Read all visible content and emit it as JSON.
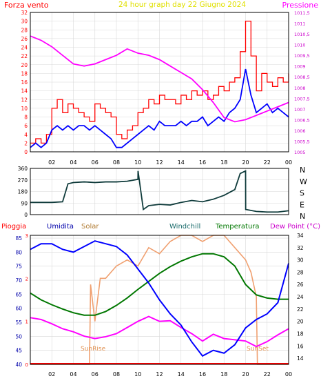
{
  "chart_data": [
    {
      "type": "line",
      "title": "24 hour graph day  22 Giugno 2024",
      "left_axis_label": "Forza vento",
      "right_axis_label": "Pressione",
      "x_tick_labels": [
        "02",
        "04",
        "06",
        "08",
        "10",
        "12",
        "14",
        "16",
        "18",
        "20",
        "22",
        "00"
      ],
      "x_range_hours": [
        0,
        24
      ],
      "left_ylim": [
        0,
        32
      ],
      "left_ticks": [
        "0",
        "2",
        "4",
        "6",
        "8",
        "10",
        "12",
        "14",
        "16",
        "18",
        "20",
        "22",
        "24",
        "26",
        "28",
        "30",
        "32"
      ],
      "right_ylim": [
        1005,
        1011.5
      ],
      "right_ticks": [
        "1005",
        "1005,5",
        "1006",
        "1006,5",
        "1007",
        "1007,5",
        "1008",
        "1008,5",
        "1009",
        "1009,5",
        "1010",
        "1010,5",
        "1011",
        "1011,5"
      ],
      "grid": true,
      "series": [
        {
          "color": "#ff0000",
          "shape": "step",
          "x": [
            0,
            0.5,
            1,
            1.5,
            2,
            2.5,
            3,
            3.5,
            4,
            4.5,
            5,
            5.5,
            6,
            6.5,
            7,
            7.5,
            8,
            8.5,
            9,
            9.5,
            10,
            10.5,
            11,
            11.5,
            12,
            12.5,
            13,
            13.5,
            14,
            14.5,
            15,
            15.5,
            16,
            16.5,
            17,
            17.5,
            18,
            18.5,
            19,
            19.5,
            20,
            20.5,
            21,
            21.5,
            22,
            22.5,
            23,
            23.5,
            24
          ],
          "values": [
            2,
            3,
            2,
            4,
            10,
            12,
            9,
            11,
            10,
            9,
            8,
            7,
            11,
            10,
            9,
            8,
            4,
            3,
            5,
            6,
            9,
            10,
            12,
            11,
            13,
            12,
            12,
            11,
            13,
            12,
            14,
            13,
            14,
            12,
            13,
            15,
            14,
            16,
            17,
            23,
            30,
            22,
            14,
            18,
            16,
            15,
            17,
            16,
            18
          ]
        },
        {
          "color": "#0000ff",
          "shape": "line",
          "x": [
            0,
            0.5,
            1,
            1.5,
            2,
            2.5,
            3,
            3.5,
            4,
            4.5,
            5,
            5.5,
            6,
            6.5,
            7,
            7.5,
            8,
            8.5,
            9,
            9.5,
            10,
            10.5,
            11,
            11.5,
            12,
            12.5,
            13,
            13.5,
            14,
            14.5,
            15,
            15.5,
            16,
            16.5,
            17,
            17.5,
            18,
            18.5,
            19,
            19.5,
            20,
            20.5,
            21,
            21.5,
            22,
            22.5,
            23,
            23.5,
            24
          ],
          "values": [
            1,
            2,
            1,
            2,
            5,
            6,
            5,
            6,
            5,
            6,
            6,
            5,
            6,
            5,
            4,
            3,
            1,
            1,
            2,
            3,
            4,
            5,
            6,
            5,
            7,
            6,
            6,
            6,
            7,
            6,
            7,
            7,
            8,
            6,
            7,
            8,
            7,
            9,
            10,
            12,
            19,
            13,
            9,
            10,
            11,
            9,
            10,
            9,
            8
          ]
        },
        {
          "color": "#ff00ff",
          "shape": "line",
          "x": [
            0,
            1,
            2,
            3,
            4,
            5,
            6,
            7,
            8,
            9,
            10,
            11,
            12,
            13,
            14,
            15,
            16,
            17,
            18,
            19,
            20,
            21,
            22,
            23,
            24
          ],
          "values": [
            1010.4,
            1010.2,
            1009.9,
            1009.5,
            1009.1,
            1009.0,
            1009.1,
            1009.3,
            1009.5,
            1009.8,
            1009.6,
            1009.5,
            1009.3,
            1009.0,
            1008.7,
            1008.4,
            1007.9,
            1007.3,
            1006.6,
            1006.4,
            1006.5,
            1006.7,
            1006.9,
            1007.1,
            1007.3
          ]
        }
      ]
    },
    {
      "type": "line",
      "right_labels": [
        "N",
        "W",
        "S",
        "E",
        "N"
      ],
      "left_ticks": [
        "0",
        "90",
        "180",
        "270",
        "360"
      ],
      "ylim": [
        0,
        360
      ],
      "grid": true,
      "series": [
        {
          "color": "#0f3b3b",
          "x": [
            0,
            1,
            2,
            3,
            3.5,
            4,
            5,
            6,
            7,
            8,
            9,
            10,
            10.01,
            10.5,
            11,
            12,
            13,
            14,
            15,
            16,
            17,
            18,
            19,
            19.5,
            20,
            20.01,
            21,
            22,
            23,
            24
          ],
          "values": [
            95,
            95,
            95,
            100,
            240,
            250,
            255,
            250,
            255,
            255,
            260,
            275,
            340,
            40,
            70,
            80,
            75,
            95,
            110,
            100,
            120,
            150,
            195,
            320,
            340,
            40,
            25,
            20,
            20,
            30
          ]
        }
      ]
    },
    {
      "type": "line",
      "legend": [
        {
          "label": "Pioggia",
          "color": "#ff0000"
        },
        {
          "label": "Umidita",
          "color": "#0000aa"
        },
        {
          "label": "Solar",
          "color": "#b07a30"
        },
        {
          "label": "Windchill",
          "color": "#1a6b6b"
        },
        {
          "label": "Temperatura",
          "color": "#007700"
        },
        {
          "label": "Dew Point (°C)",
          "color": "#cc00cc"
        }
      ],
      "left_ylim": [
        40,
        86
      ],
      "left_ticks": [
        "40",
        "45",
        "50",
        "55",
        "60",
        "65",
        "70",
        "75",
        "80",
        "85"
      ],
      "right_ylim": [
        13,
        34
      ],
      "right_ticks": [
        "14",
        "16",
        "18",
        "20",
        "22",
        "24",
        "26",
        "28",
        "30",
        "32",
        "34"
      ],
      "aux_ticks": [
        "0",
        "1",
        "2",
        "3"
      ],
      "annotations": [
        "SunRise",
        "SunSet"
      ],
      "grid": true,
      "series": [
        {
          "color": "#0000ff",
          "axis": "left",
          "x": [
            0,
            1,
            2,
            3,
            4,
            5,
            6,
            7,
            8,
            9,
            10,
            11,
            12,
            13,
            14,
            15,
            16,
            17,
            18,
            19,
            20,
            21,
            22,
            23,
            24
          ],
          "values": [
            81,
            83,
            83,
            81,
            80,
            82,
            84,
            83,
            82,
            79,
            74,
            69,
            63,
            58,
            54,
            48,
            43,
            45,
            44,
            47,
            53,
            56,
            58,
            62,
            76
          ]
        },
        {
          "color": "#007700",
          "axis": "right",
          "x": [
            0,
            1,
            2,
            3,
            4,
            5,
            6,
            7,
            8,
            9,
            10,
            11,
            12,
            13,
            14,
            15,
            16,
            17,
            18,
            19,
            20,
            21,
            22,
            23,
            24
          ],
          "values": [
            24.6,
            23.5,
            22.7,
            22.0,
            21.4,
            21.0,
            21.0,
            21.6,
            22.6,
            23.8,
            25.2,
            26.5,
            27.8,
            28.9,
            29.8,
            30.5,
            31.0,
            31.0,
            30.5,
            29.0,
            26.0,
            24.3,
            23.8,
            23.6,
            23.6
          ]
        },
        {
          "color": "#ff00ff",
          "axis": "right",
          "x": [
            0,
            1,
            2,
            3,
            4,
            5,
            6,
            7,
            8,
            9,
            10,
            11,
            12,
            13,
            14,
            15,
            16,
            17,
            18,
            19,
            20,
            21,
            22,
            23,
            24
          ],
          "values": [
            20.6,
            20.3,
            19.6,
            18.8,
            18.3,
            17.6,
            17.2,
            17.5,
            18.0,
            19.0,
            20.0,
            20.8,
            20.0,
            20.1,
            19.0,
            18.0,
            16.8,
            17.9,
            17.2,
            17.0,
            16.8,
            15.9,
            16.7,
            17.8,
            18.8
          ]
        },
        {
          "color": "#f0a070",
          "axis": "right",
          "x": [
            0,
            4,
            5.5,
            5.6,
            6,
            6.5,
            7,
            8,
            9,
            10,
            11,
            12,
            13,
            14,
            15,
            16,
            17,
            18,
            19,
            20,
            20.5,
            21,
            21.1,
            24
          ],
          "values": [
            13,
            13,
            13,
            26,
            20,
            27,
            27,
            29,
            30,
            29,
            32,
            31,
            33,
            34,
            34,
            33,
            34,
            34,
            32,
            30,
            28,
            24,
            13,
            13
          ]
        }
      ]
    }
  ]
}
